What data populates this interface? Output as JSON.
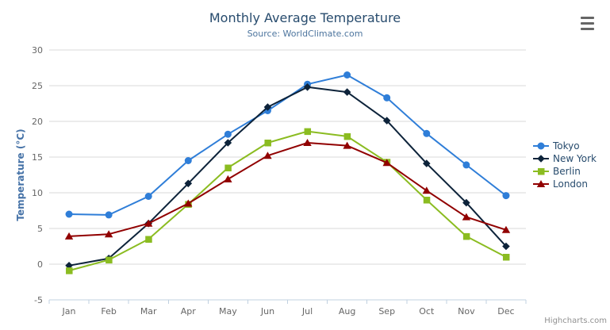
{
  "chart_data": {
    "type": "line",
    "title": "Monthly Average Temperature",
    "subtitle": "Source: WorldClimate.com",
    "ylabel": "Temperature (°C)",
    "xlabel": "",
    "categories": [
      "Jan",
      "Feb",
      "Mar",
      "Apr",
      "May",
      "Jun",
      "Jul",
      "Aug",
      "Sep",
      "Oct",
      "Nov",
      "Dec"
    ],
    "ylim": [
      -5,
      30
    ],
    "yticks": [
      -5,
      0,
      5,
      10,
      15,
      20,
      25,
      30
    ],
    "grid": true,
    "legend_position": "right",
    "series": [
      {
        "name": "Tokyo",
        "color": "#2f7ed8",
        "marker": "circle",
        "values": [
          7.0,
          6.9,
          9.5,
          14.5,
          18.2,
          21.5,
          25.2,
          26.5,
          23.3,
          18.3,
          13.9,
          9.6
        ]
      },
      {
        "name": "New York",
        "color": "#0d233a",
        "marker": "diamond",
        "values": [
          -0.2,
          0.8,
          5.7,
          11.3,
          17.0,
          22.0,
          24.8,
          24.1,
          20.1,
          14.1,
          8.6,
          2.5
        ]
      },
      {
        "name": "Berlin",
        "color": "#8bbc21",
        "marker": "square",
        "values": [
          -0.9,
          0.6,
          3.5,
          8.4,
          13.5,
          17.0,
          18.6,
          17.9,
          14.3,
          9.0,
          3.9,
          1.0
        ]
      },
      {
        "name": "London",
        "color": "#910000",
        "marker": "triangle",
        "values": [
          3.9,
          4.2,
          5.7,
          8.5,
          11.9,
          15.2,
          17.0,
          16.6,
          14.2,
          10.3,
          6.6,
          4.8
        ]
      }
    ],
    "credits": "Highcharts.com"
  },
  "colors": {
    "title": "#274b6d",
    "subtitle": "#4d759e",
    "axis_label": "#666666",
    "y_axis_title": "#4572a7",
    "grid_line": "#d8d8d8",
    "axis_line": "#c0d0e0",
    "legend_text": "#274b6d",
    "credits_text": "#909090",
    "menu_icon": "#666666"
  },
  "toolbar": {
    "menu_icon": "hamburger-icon"
  }
}
